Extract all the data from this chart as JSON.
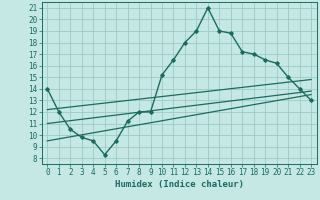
{
  "xlabel": "Humidex (Indice chaleur)",
  "x_ticks": [
    0,
    1,
    2,
    3,
    4,
    5,
    6,
    7,
    8,
    9,
    10,
    11,
    12,
    13,
    14,
    15,
    16,
    17,
    18,
    19,
    20,
    21,
    22,
    23
  ],
  "ylim": [
    7.5,
    21.5
  ],
  "xlim": [
    -0.5,
    23.5
  ],
  "y_ticks": [
    8,
    9,
    10,
    11,
    12,
    13,
    14,
    15,
    16,
    17,
    18,
    19,
    20,
    21
  ],
  "main_line_x": [
    0,
    1,
    2,
    3,
    4,
    5,
    6,
    7,
    8,
    9,
    10,
    11,
    12,
    13,
    14,
    15,
    16,
    17,
    18,
    19,
    20,
    21,
    22,
    23
  ],
  "main_line_y": [
    14.0,
    12.0,
    10.5,
    9.8,
    9.5,
    8.3,
    9.5,
    11.2,
    12.0,
    12.0,
    15.2,
    16.5,
    18.0,
    19.0,
    21.0,
    19.0,
    18.8,
    17.2,
    17.0,
    16.5,
    16.2,
    15.0,
    14.0,
    13.0
  ],
  "line1_x": [
    0,
    23
  ],
  "line1_y": [
    9.5,
    13.5
  ],
  "line2_x": [
    0,
    23
  ],
  "line2_y": [
    11.0,
    13.8
  ],
  "line3_x": [
    0,
    23
  ],
  "line3_y": [
    12.2,
    14.8
  ],
  "bg_color": "#c5e8e5",
  "line_color": "#1a6b60",
  "grid_color": "#9bccc7",
  "tick_fontsize": 5.5,
  "label_fontsize": 6.5
}
